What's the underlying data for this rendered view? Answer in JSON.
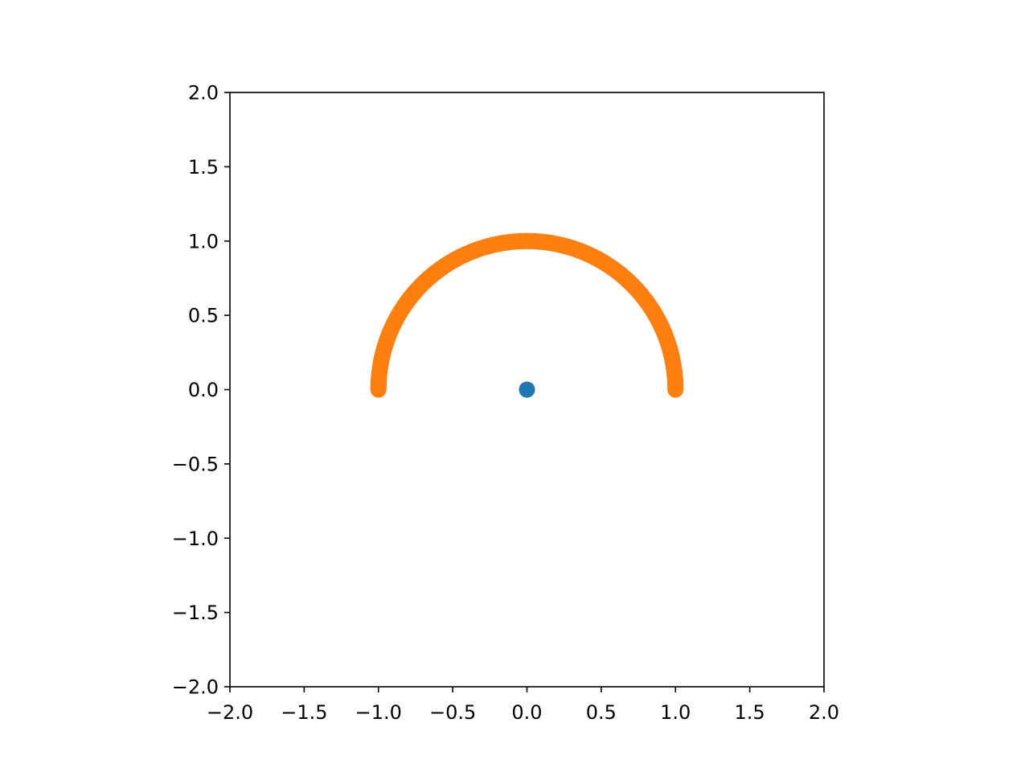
{
  "chart_data": {
    "type": "scatter",
    "title": "",
    "xlabel": "",
    "ylabel": "",
    "xlim": [
      -2.0,
      2.0
    ],
    "ylim": [
      -2.0,
      2.0
    ],
    "grid": false,
    "aspect": "equal",
    "x_ticks": [
      -2.0,
      -1.5,
      -1.0,
      -0.5,
      0.0,
      0.5,
      1.0,
      1.5,
      2.0
    ],
    "y_ticks": [
      -2.0,
      -1.5,
      -1.0,
      -0.5,
      0.0,
      0.5,
      1.0,
      1.5,
      2.0
    ],
    "x_tick_labels": [
      "−2.0",
      "−1.5",
      "−1.0",
      "−0.5",
      "0.0",
      "0.5",
      "1.0",
      "1.5",
      "2.0"
    ],
    "y_tick_labels": [
      "−2.0",
      "−1.5",
      "−1.0",
      "−0.5",
      "0.0",
      "0.5",
      "1.0",
      "1.5",
      "2.0"
    ],
    "series": [
      {
        "color": "#1f77b4",
        "marker": "circle",
        "points": [
          [
            0.0,
            0.0
          ]
        ]
      },
      {
        "color": "#ff7f0e",
        "marker": "circle",
        "shape": "semicircle arc of radius 1 centered at origin, upper half",
        "radius": 1.0,
        "center": [
          0.0,
          0.0
        ],
        "angle_range_deg": [
          0,
          180
        ],
        "n_points": 361
      }
    ]
  }
}
